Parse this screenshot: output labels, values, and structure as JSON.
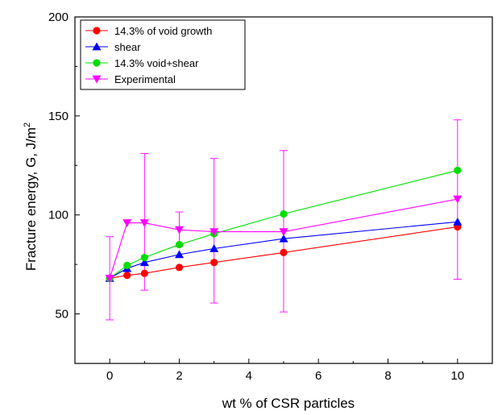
{
  "chart_data": {
    "type": "line",
    "xlabel": "wt % of CSR particles",
    "ylabel": "Fracture energy, G, J/m",
    "ylabel_superscript": "2",
    "xlim": [
      -1,
      11
    ],
    "ylim": [
      25,
      200
    ],
    "xticks": [
      0,
      2,
      4,
      6,
      8,
      10
    ],
    "yticks": [
      50,
      100,
      150,
      200
    ],
    "grid": false,
    "legend_position": "top-left",
    "series": [
      {
        "name": "14.3% of void growth",
        "color": "#ff0000",
        "marker": "circle",
        "x": [
          0,
          0.5,
          1,
          2,
          3,
          5,
          10
        ],
        "y": [
          68,
          69.5,
          70.5,
          73.5,
          76,
          81,
          94
        ]
      },
      {
        "name": "shear",
        "color": "#0000ff",
        "marker": "triangle-up",
        "x": [
          0,
          0.5,
          1,
          2,
          3,
          5,
          10
        ],
        "y": [
          68,
          73,
          76,
          80,
          83,
          88,
          96.5
        ]
      },
      {
        "name": "14.3% void+shear",
        "color": "#00dd00",
        "marker": "circle",
        "x": [
          0,
          0.5,
          1,
          2,
          3,
          5,
          10
        ],
        "y": [
          68,
          74.5,
          78.5,
          85,
          90.5,
          100.5,
          122.5
        ]
      },
      {
        "name": "Experimental",
        "color": "#ff00ff",
        "marker": "triangle-down",
        "x": [
          0,
          0.5,
          1,
          2,
          3,
          5,
          10
        ],
        "y": [
          68,
          96,
          96,
          92.5,
          91.5,
          91.5,
          108
        ],
        "err_low": [
          47,
          96,
          62,
          84,
          55.5,
          51,
          67.5
        ],
        "err_high": [
          89,
          96,
          131,
          101.5,
          128.5,
          132.5,
          148
        ]
      }
    ]
  }
}
